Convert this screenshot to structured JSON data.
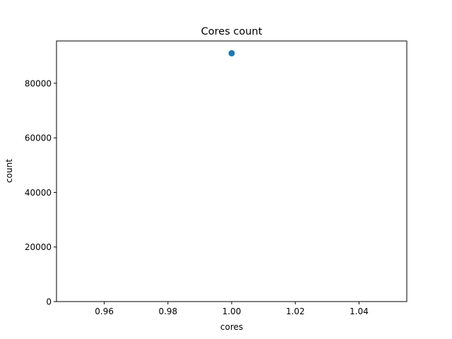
{
  "chart_data": {
    "type": "scatter",
    "title": "Cores count",
    "xlabel": "cores",
    "ylabel": "count",
    "xlim": [
      0.945,
      1.055
    ],
    "ylim": [
      0,
      95500
    ],
    "x_ticks": [
      0.96,
      0.98,
      1.0,
      1.02,
      1.04
    ],
    "x_tick_labels": [
      "0.96",
      "0.98",
      "1.00",
      "1.02",
      "1.04"
    ],
    "y_ticks": [
      0,
      20000,
      40000,
      60000,
      80000
    ],
    "y_tick_labels": [
      "0",
      "20000",
      "40000",
      "60000",
      "80000"
    ],
    "grid": false,
    "series": [
      {
        "color": "#1f77b4",
        "points": [
          {
            "x": 1.0,
            "y": 91000
          }
        ]
      }
    ]
  }
}
